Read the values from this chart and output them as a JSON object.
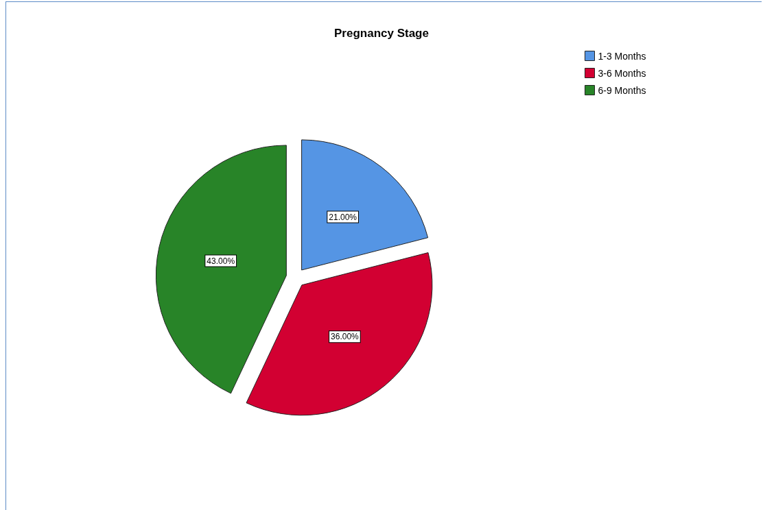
{
  "chart_data": {
    "type": "pie",
    "title": "Pregnancy Stage",
    "categories": [
      "1-3 Months",
      "3-6 Months",
      "6-9 Months"
    ],
    "values": [
      21,
      36,
      43
    ],
    "colors": [
      "#5595e4",
      "#d20032",
      "#288428"
    ],
    "value_labels": [
      "21.00%",
      "36.00%",
      "43.00%"
    ],
    "legend": "top right"
  }
}
